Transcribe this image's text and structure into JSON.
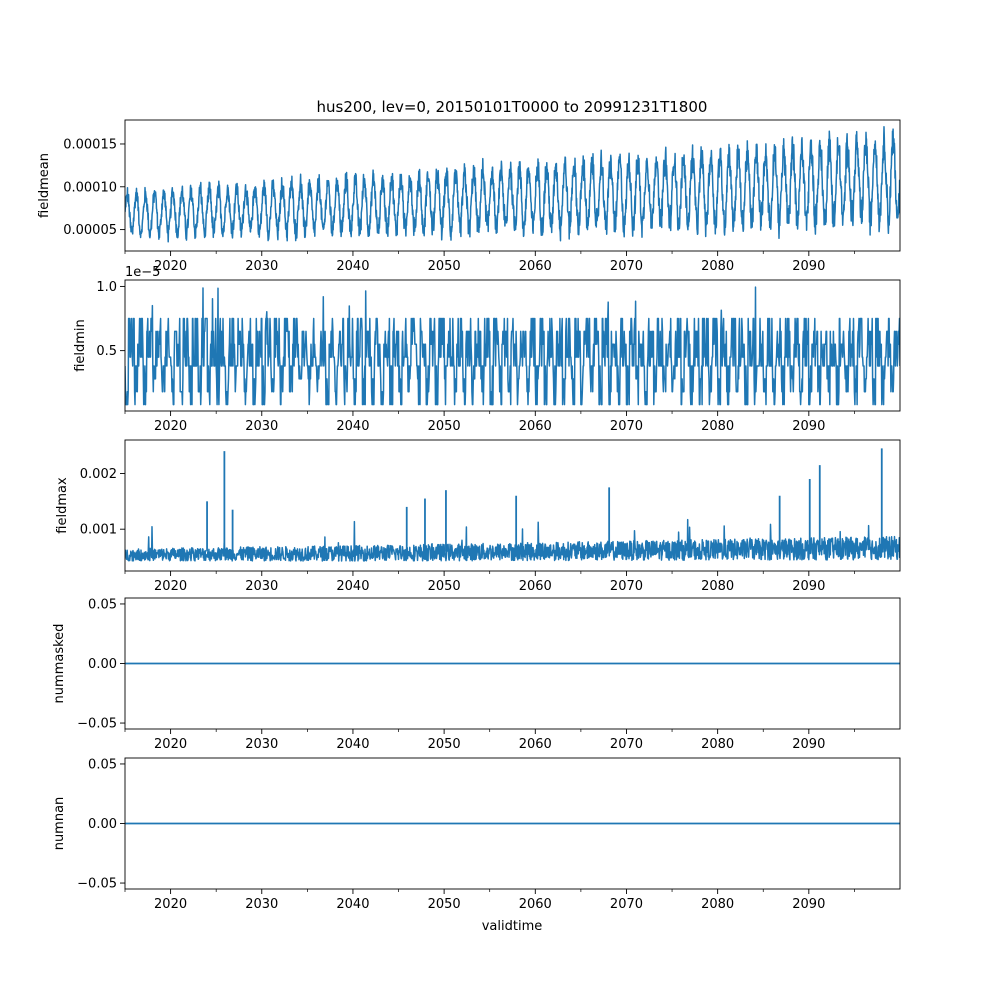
{
  "title": "hus200, lev=0, 20150101T0000 to 20991231T1800",
  "xlabel": "validtime",
  "colors": {
    "series": "#1f77b4",
    "axes": "#000000",
    "background": "#ffffff"
  },
  "chart_data": [
    {
      "type": "line",
      "name": "fieldmean",
      "ylabel": "fieldmean",
      "xlim": [
        2015.0,
        2100.0
      ],
      "ylim": [
        2.5e-05,
        0.000178
      ],
      "x_ticks": [
        2020,
        2030,
        2040,
        2050,
        2060,
        2070,
        2080,
        2090
      ],
      "x_tick_labels": [
        "2020",
        "2030",
        "2040",
        "2050",
        "2060",
        "2070",
        "2080",
        "2090"
      ],
      "y_ticks": [
        5e-05,
        0.0001,
        0.00015
      ],
      "y_tick_labels": [
        "0.00005",
        "0.00010",
        "0.00015"
      ],
      "offset_text": "",
      "x": [
        2015,
        2025,
        2035,
        2045,
        2055,
        2065,
        2075,
        2085,
        2095,
        2100
      ],
      "values": [
        6.8e-05,
        7.2e-05,
        7.6e-05,
        8e-05,
        8.5e-05,
        9e-05,
        9.5e-05,
        0.0001,
        0.000106,
        0.00011
      ],
      "seasonal_amplitude_start": 2.2e-05,
      "seasonal_amplitude_end": 4.5e-05,
      "ymin_observed": 3e-05,
      "ymax_observed": 0.00017
    },
    {
      "type": "line",
      "name": "fieldmin",
      "ylabel": "fieldmin",
      "xlim": [
        2015.0,
        2100.0
      ],
      "ylim": [
        0.03,
        1.05
      ],
      "x_ticks": [
        2020,
        2030,
        2040,
        2050,
        2060,
        2070,
        2080,
        2090
      ],
      "x_tick_labels": [
        "2020",
        "2030",
        "2040",
        "2050",
        "2060",
        "2070",
        "2080",
        "2090"
      ],
      "y_ticks": [
        0.5,
        1.0
      ],
      "y_tick_labels": [
        "0.5",
        "1.0"
      ],
      "offset_text": "1e−5",
      "x": [
        2015,
        2100
      ],
      "values": [
        0.45,
        0.45
      ],
      "levels": [
        0.08,
        0.18,
        0.28,
        0.38,
        0.45,
        0.55,
        0.65,
        0.75
      ],
      "ymin_observed": 0.08,
      "ymax_observed": 1.02
    },
    {
      "type": "line",
      "name": "fieldmax",
      "ylabel": "fieldmax",
      "xlim": [
        2015.0,
        2100.0
      ],
      "ylim": [
        0.00025,
        0.0026
      ],
      "x_ticks": [
        2020,
        2030,
        2040,
        2050,
        2060,
        2070,
        2080,
        2090
      ],
      "x_tick_labels": [
        "2020",
        "2030",
        "2040",
        "2050",
        "2060",
        "2070",
        "2080",
        "2090"
      ],
      "y_ticks": [
        0.001,
        0.002
      ],
      "y_tick_labels": [
        "0.001",
        "0.002"
      ],
      "offset_text": "",
      "x": [
        2015,
        2040,
        2070,
        2100
      ],
      "values": [
        0.00052,
        0.00054,
        0.00058,
        0.00062
      ],
      "spikes": [
        {
          "x": 2024.0,
          "y": 0.0015
        },
        {
          "x": 2025.9,
          "y": 0.0024
        },
        {
          "x": 2026.8,
          "y": 0.00135
        },
        {
          "x": 2045.9,
          "y": 0.0014
        },
        {
          "x": 2047.9,
          "y": 0.00155
        },
        {
          "x": 2050.2,
          "y": 0.0017
        },
        {
          "x": 2057.9,
          "y": 0.0016
        },
        {
          "x": 2068.1,
          "y": 0.00175
        },
        {
          "x": 2086.8,
          "y": 0.0016
        },
        {
          "x": 2090.1,
          "y": 0.0019
        },
        {
          "x": 2091.2,
          "y": 0.00215
        },
        {
          "x": 2098.0,
          "y": 0.00245
        }
      ],
      "ymin_observed": 0.00032,
      "ymax_observed": 0.00245
    },
    {
      "type": "line",
      "name": "nummasked",
      "ylabel": "nummasked",
      "xlim": [
        2015.0,
        2100.0
      ],
      "ylim": [
        -0.055,
        0.055
      ],
      "x_ticks": [
        2020,
        2030,
        2040,
        2050,
        2060,
        2070,
        2080,
        2090
      ],
      "x_tick_labels": [
        "2020",
        "2030",
        "2040",
        "2050",
        "2060",
        "2070",
        "2080",
        "2090"
      ],
      "y_ticks": [
        -0.05,
        0.0,
        0.05
      ],
      "y_tick_labels": [
        "−0.05",
        "0.00",
        "0.05"
      ],
      "offset_text": "",
      "x": [
        2015,
        2100
      ],
      "values": [
        0,
        0
      ]
    },
    {
      "type": "line",
      "name": "numnan",
      "ylabel": "numnan",
      "xlim": [
        2015.0,
        2100.0
      ],
      "ylim": [
        -0.055,
        0.055
      ],
      "x_ticks": [
        2020,
        2030,
        2040,
        2050,
        2060,
        2070,
        2080,
        2090
      ],
      "x_tick_labels": [
        "2020",
        "2030",
        "2040",
        "2050",
        "2060",
        "2070",
        "2080",
        "2090"
      ],
      "y_ticks": [
        -0.05,
        0.0,
        0.05
      ],
      "y_tick_labels": [
        "−0.05",
        "0.00",
        "0.05"
      ],
      "offset_text": "",
      "x": [
        2015,
        2100
      ],
      "values": [
        0,
        0
      ]
    }
  ]
}
